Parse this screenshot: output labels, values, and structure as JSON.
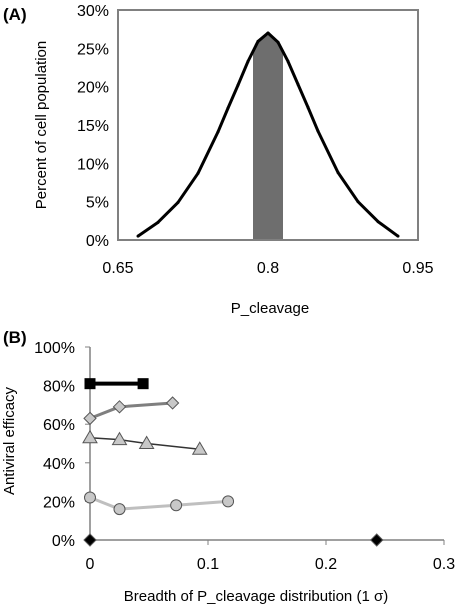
{
  "chart_data": [
    {
      "panel_label": "(A)",
      "type": "area",
      "xlabel": "P_cleavage",
      "ylabel": "Percent of cell population",
      "xlim": [
        0.65,
        0.95
      ],
      "ylim": [
        0,
        30
      ],
      "x_ticks": [
        "0.65",
        "0.8",
        "0.95"
      ],
      "y_ticks": [
        "0%",
        "5%",
        "10%",
        "15%",
        "20%",
        "25%",
        "30%"
      ],
      "grid": false,
      "legend": "none",
      "series": [
        {
          "x": [
            0.67,
            0.69,
            0.71,
            0.73,
            0.75,
            0.76,
            0.77,
            0.78,
            0.79,
            0.8,
            0.81,
            0.82,
            0.83,
            0.84,
            0.85,
            0.87,
            0.89,
            0.91,
            0.93
          ],
          "values": [
            0.5,
            2.3,
            4.9,
            8.7,
            14.1,
            17.2,
            20.2,
            23.3,
            25.9,
            27.0,
            25.8,
            23.3,
            20.3,
            17.3,
            14.2,
            8.8,
            5.0,
            2.4,
            0.5
          ]
        }
      ],
      "shaded_range": [
        0.785,
        0.815
      ],
      "colors": {
        "line": "#000000",
        "fill": "#6e6e6e",
        "frame": "#808080"
      }
    },
    {
      "panel_label": "(B)",
      "type": "line",
      "xlabel": "Breadth of P_cleavage distribution (1 σ)",
      "ylabel": "Antiviral efficacy",
      "xlim": [
        0,
        0.3
      ],
      "ylim": [
        0,
        100
      ],
      "x_ticks": [
        "0",
        "0.1",
        "0.2",
        "0.3"
      ],
      "y_ticks": [
        "0%",
        "20%",
        "40%",
        "60%",
        "80%",
        "100%"
      ],
      "grid": false,
      "legend": "none",
      "series": [
        {
          "x": [
            0,
            0.045
          ],
          "values": [
            81,
            81
          ],
          "line_color": "#000000",
          "marker": "square",
          "marker_fill": "#000000",
          "line_width": 4
        },
        {
          "x": [
            0,
            0.025,
            0.07
          ],
          "values": [
            63,
            69,
            71
          ],
          "line_color": "#7f7f7f",
          "marker": "diamond",
          "marker_fill": "#c8c8c8",
          "line_width": 3
        },
        {
          "x": [
            0,
            0.025,
            0.048,
            0.093
          ],
          "values": [
            53,
            52,
            50,
            47
          ],
          "line_color": "#333333",
          "marker": "triangle",
          "marker_fill": "#c8c8c8",
          "line_width": 1.5
        },
        {
          "x": [
            0,
            0.025,
            0.073,
            0.117
          ],
          "values": [
            22,
            16,
            18,
            20
          ],
          "line_color": "#bfbfbf",
          "marker": "circle",
          "marker_fill": "#c8c8c8",
          "line_width": 3
        },
        {
          "x": [
            0,
            0.243
          ],
          "values": [
            0,
            0
          ],
          "line_color": "none",
          "marker": "diamond",
          "marker_fill": "#000000",
          "line_width": 0
        }
      ]
    }
  ]
}
